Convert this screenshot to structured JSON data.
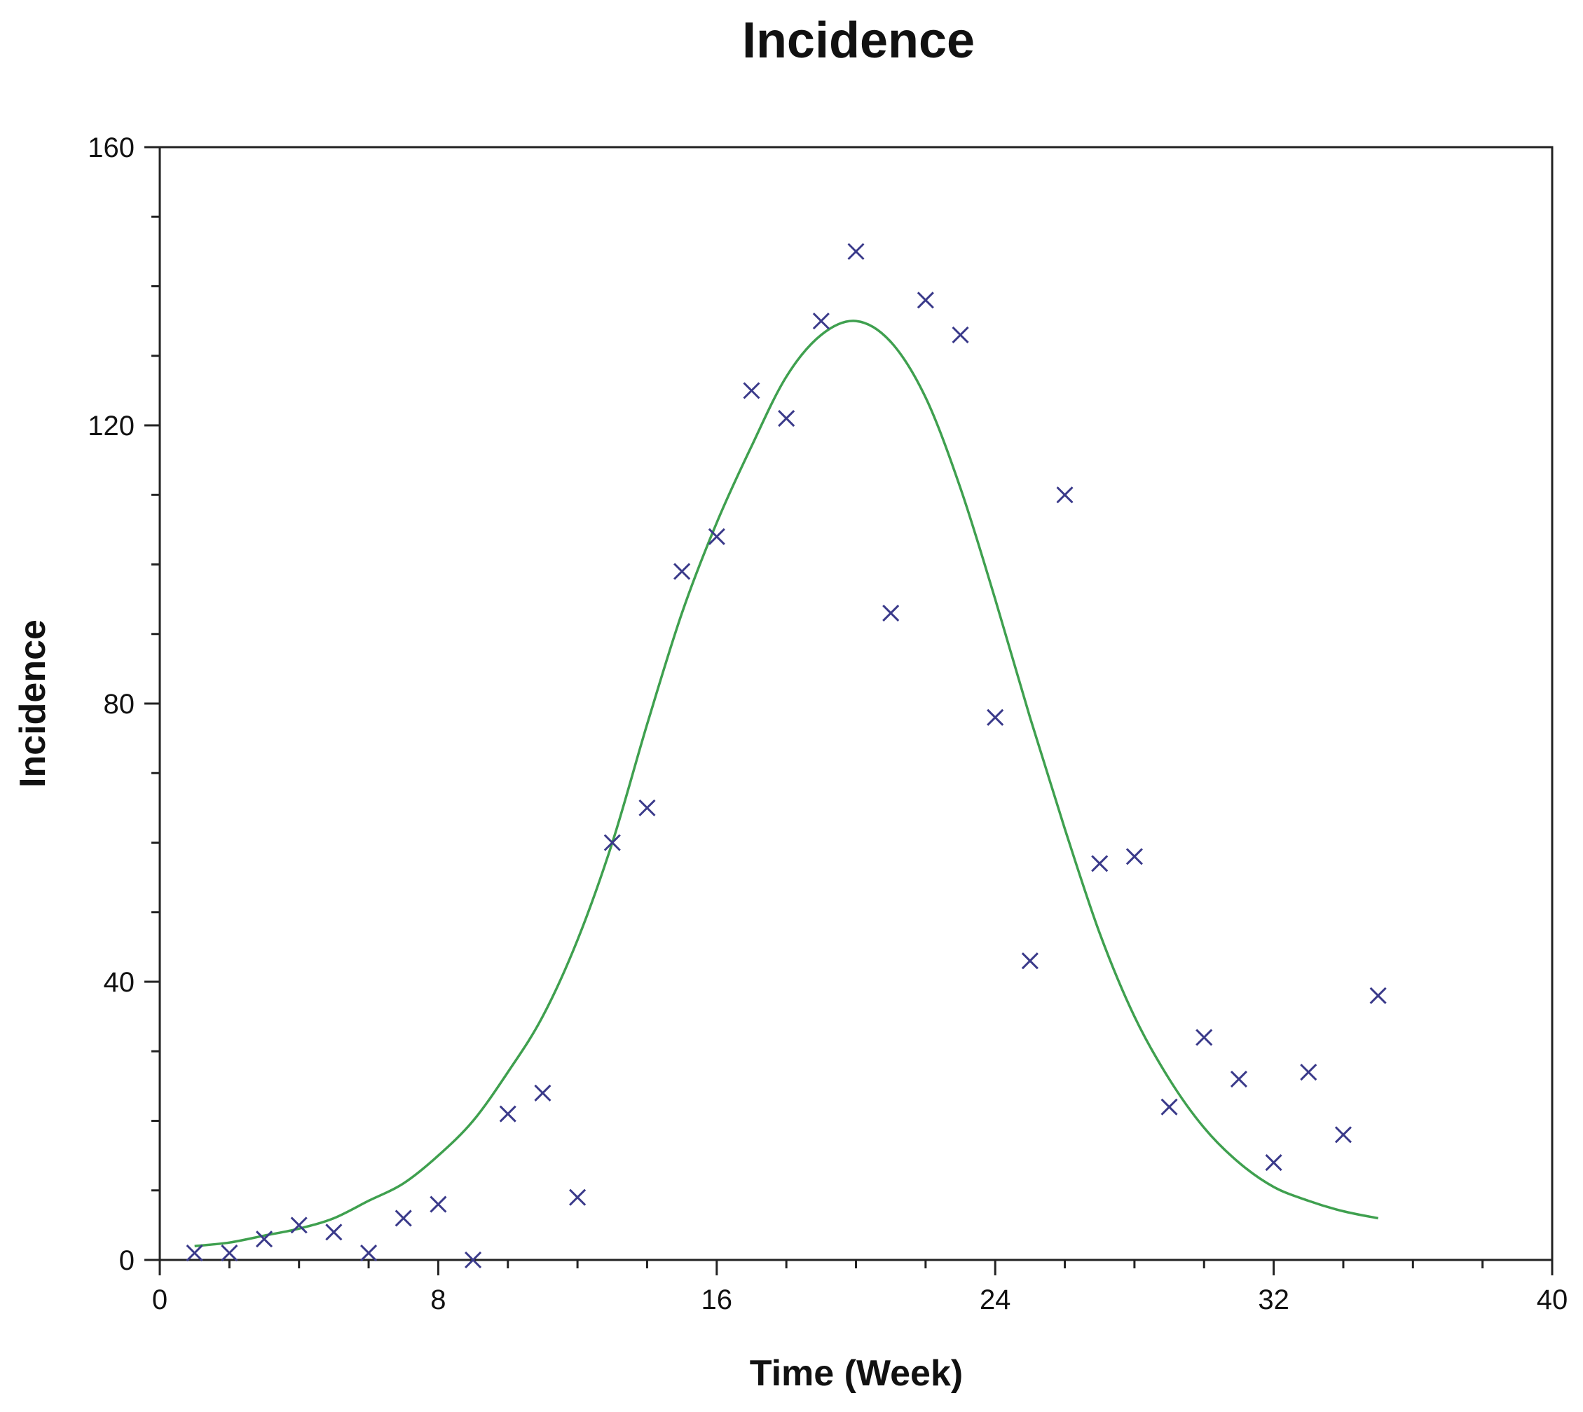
{
  "chart_data": {
    "type": "scatter",
    "title": "Incidence",
    "xlabel": "Time (Week)",
    "ylabel": "Incidence",
    "xlim": [
      0,
      40
    ],
    "ylim": [
      0,
      160
    ],
    "xticks": [
      0,
      8,
      16,
      24,
      32,
      40
    ],
    "yticks": [
      0,
      40,
      80,
      120,
      160
    ],
    "grid": false,
    "series": [
      {
        "type": "scatter",
        "marker": "x",
        "color": "#3a3a8a",
        "x": [
          1,
          2,
          3,
          4,
          5,
          6,
          7,
          8,
          9,
          10,
          11,
          12,
          13,
          14,
          15,
          16,
          17,
          18,
          19,
          20,
          21,
          22,
          23,
          24,
          25,
          26,
          27,
          28,
          29,
          30,
          31,
          32,
          33,
          34,
          35
        ],
        "y": [
          1,
          1,
          3,
          5,
          4,
          1,
          6,
          8,
          0,
          21,
          24,
          9,
          60,
          65,
          99,
          104,
          125,
          121,
          135,
          145,
          93,
          138,
          133,
          78,
          43,
          110,
          57,
          58,
          22,
          32,
          26,
          14,
          27,
          18,
          38
        ]
      },
      {
        "type": "line",
        "color": "#3fa04f",
        "x": [
          1,
          2,
          3,
          4,
          5,
          6,
          7,
          8,
          9,
          10,
          11,
          12,
          13,
          14,
          15,
          16,
          17,
          18,
          19,
          20,
          21,
          22,
          23,
          24,
          25,
          26,
          27,
          28,
          29,
          30,
          31,
          32,
          33,
          34,
          35
        ],
        "y": [
          2,
          2.5,
          3.5,
          4.5,
          6,
          8.5,
          11,
          15,
          20,
          27,
          35,
          46,
          60,
          77,
          93,
          106,
          117,
          127,
          133,
          135,
          132,
          124,
          111,
          95,
          78,
          62,
          47,
          35,
          26,
          19,
          14,
          10.5,
          8.5,
          7,
          6
        ]
      }
    ]
  }
}
